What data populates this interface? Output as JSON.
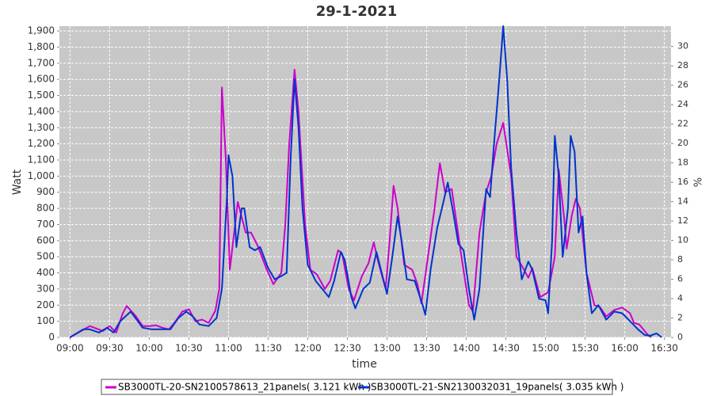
{
  "chart_data": {
    "type": "line",
    "title": "29-1-2021",
    "xlabel": "time",
    "ylabel": "Watt",
    "y2label": "%",
    "xlim": [
      "08:52",
      "16:35"
    ],
    "xticks": [
      "09:00",
      "09:30",
      "10:00",
      "10:30",
      "11:00",
      "11:30",
      "12:00",
      "12:30",
      "13:00",
      "13:30",
      "14:00",
      "14:30",
      "15:00",
      "15:30",
      "16:00",
      "16:30"
    ],
    "ylim": [
      0,
      1930
    ],
    "yticks": [
      0,
      100,
      200,
      300,
      400,
      500,
      600,
      700,
      800,
      900,
      {
        "value": 1000,
        "label": "1,000"
      },
      {
        "value": 1100,
        "label": "1,100"
      },
      {
        "value": 1200,
        "label": "1,200"
      },
      {
        "value": 1300,
        "label": "1,300"
      },
      {
        "value": 1400,
        "label": "1,400"
      },
      {
        "value": 1500,
        "label": "1,500"
      },
      {
        "value": 1600,
        "label": "1,600"
      },
      {
        "value": 1700,
        "label": "1,700"
      },
      {
        "value": 1800,
        "label": "1,800"
      },
      {
        "value": 1900,
        "label": "1,900"
      }
    ],
    "y2lim": [
      0,
      32.1
    ],
    "y2ticks": [
      0,
      2,
      4,
      6,
      8,
      10,
      12,
      14,
      16,
      18,
      20,
      22,
      24,
      26,
      28,
      30
    ],
    "grid": true,
    "legend": "bottom",
    "series": [
      {
        "name": "SB3000TL-20-SN2100578613_21panels( 3.121 kWh )",
        "color": "#cc00cc",
        "x": [
          "09:00",
          "09:15",
          "09:25",
          "09:30",
          "09:35",
          "09:40",
          "09:43",
          "09:50",
          "09:55",
          "10:00",
          "10:05",
          "10:10",
          "10:15",
          "10:20",
          "10:25",
          "10:30",
          "10:35",
          "10:40",
          "10:45",
          "10:50",
          "10:53",
          "10:55",
          "10:58",
          "11:01",
          "11:07",
          "11:13",
          "11:17",
          "11:22",
          "11:29",
          "11:34",
          "11:40",
          "11:43",
          "11:46",
          "11:50",
          "11:53",
          "11:58",
          "12:02",
          "12:07",
          "12:13",
          "12:17",
          "12:23",
          "12:26",
          "12:31",
          "12:35",
          "12:41",
          "12:46",
          "12:50",
          "12:53",
          "12:59",
          "13:02",
          "13:05",
          "13:08",
          "13:13",
          "13:19",
          "13:23",
          "13:26",
          "13:31",
          "13:36",
          "13:40",
          "13:44",
          "13:49",
          "13:56",
          "14:02",
          "14:05",
          "14:10",
          "14:15",
          "14:19",
          "14:23",
          "14:28",
          "14:34",
          "14:38",
          "14:43",
          "14:47",
          "14:50",
          "14:56",
          "15:02",
          "15:07",
          "15:10",
          "15:14",
          "15:16",
          "15:20",
          "15:23",
          "15:26",
          "15:31",
          "15:37",
          "15:41",
          "15:46",
          "15:52",
          "15:58",
          "16:04",
          "16:07",
          "16:11",
          "16:17",
          "16:20"
        ],
        "values": [
          0,
          70,
          40,
          70,
          30,
          150,
          195,
          130,
          70,
          70,
          75,
          60,
          50,
          100,
          160,
          175,
          100,
          110,
          90,
          165,
          300,
          1550,
          1100,
          420,
          840,
          650,
          650,
          570,
          420,
          330,
          400,
          700,
          1200,
          1660,
          1400,
          700,
          420,
          390,
          300,
          350,
          540,
          520,
          300,
          230,
          380,
          460,
          590,
          480,
          300,
          600,
          940,
          800,
          450,
          420,
          330,
          210,
          500,
          800,
          1080,
          900,
          920,
          520,
          200,
          160,
          650,
          900,
          1000,
          1200,
          1330,
          1000,
          500,
          430,
          370,
          430,
          250,
          280,
          500,
          1040,
          750,
          550,
          760,
          860,
          800,
          400,
          200,
          190,
          130,
          170,
          185,
          150,
          90,
          80,
          20,
          0
        ]
      },
      {
        "name": "SB3000TL-21-SN2130032031_19panels( 3.035 kWh )",
        "color": "#0033cc",
        "x": [
          "09:00",
          "09:10",
          "09:15",
          "09:22",
          "09:28",
          "09:33",
          "09:38",
          "09:46",
          "09:55",
          "10:02",
          "10:10",
          "10:16",
          "10:22",
          "10:28",
          "10:33",
          "10:38",
          "10:45",
          "10:51",
          "10:55",
          "10:59",
          "11:00",
          "11:03",
          "11:06",
          "11:10",
          "11:12",
          "11:16",
          "11:20",
          "11:24",
          "11:30",
          "11:35",
          "11:40",
          "11:44",
          "11:47",
          "11:50",
          "11:53",
          "11:56",
          "12:00",
          "12:06",
          "12:12",
          "12:16",
          "12:20",
          "12:25",
          "12:28",
          "12:33",
          "12:36",
          "12:42",
          "12:47",
          "12:52",
          "12:56",
          "13:00",
          "13:04",
          "13:08",
          "13:11",
          "13:15",
          "13:21",
          "13:27",
          "13:29",
          "13:33",
          "13:38",
          "13:43",
          "13:46",
          "13:50",
          "13:54",
          "13:58",
          "14:02",
          "14:06",
          "14:10",
          "14:15",
          "14:18",
          "14:21",
          "14:25",
          "14:28",
          "14:31",
          "14:34",
          "14:38",
          "14:42",
          "14:47",
          "14:50",
          "14:55",
          "15:00",
          "15:02",
          "15:05",
          "15:07",
          "15:10",
          "15:13",
          "15:17",
          "15:19",
          "15:22",
          "15:25",
          "15:28",
          "15:31",
          "15:35",
          "15:40",
          "15:46",
          "15:52",
          "15:58",
          "16:04",
          "16:10",
          "16:15",
          "16:19",
          "16:24",
          "16:28"
        ],
        "values": [
          0,
          50,
          50,
          30,
          60,
          30,
          100,
          160,
          60,
          50,
          50,
          50,
          120,
          160,
          130,
          80,
          70,
          120,
          300,
          900,
          1130,
          1000,
          560,
          800,
          800,
          560,
          540,
          560,
          430,
          360,
          380,
          400,
          1100,
          1600,
          1300,
          800,
          450,
          350,
          290,
          250,
          350,
          530,
          480,
          250,
          180,
          300,
          340,
          530,
          400,
          270,
          500,
          750,
          600,
          360,
          350,
          200,
          140,
          420,
          680,
          850,
          960,
          780,
          580,
          540,
          300,
          110,
          300,
          920,
          870,
          1200,
          1600,
          1930,
          1600,
          1050,
          650,
          360,
          470,
          420,
          240,
          230,
          150,
          600,
          1250,
          1000,
          500,
          800,
          1250,
          1150,
          650,
          750,
          400,
          150,
          200,
          110,
          160,
          150,
          100,
          50,
          15,
          10,
          25,
          0
        ]
      }
    ]
  }
}
